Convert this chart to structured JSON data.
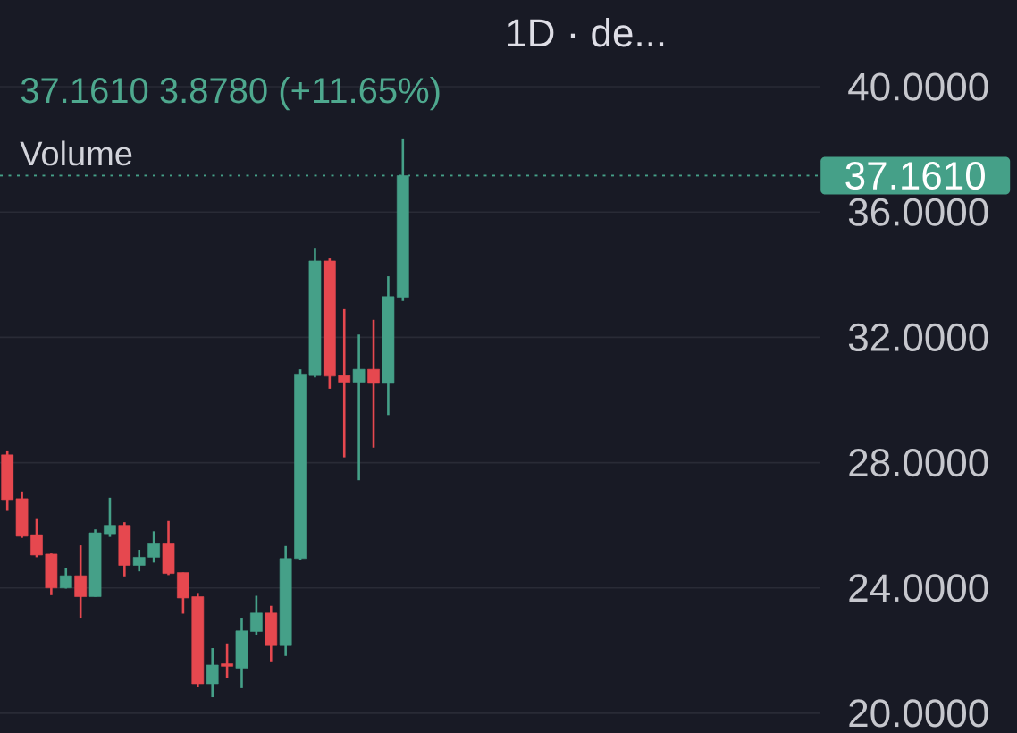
{
  "chart_data": {
    "type": "candlestick",
    "title": "1D · de...",
    "subtitle": "37.1610 3.8780 (+11.65%)",
    "annotations": [
      "Volume"
    ],
    "categories": [
      null,
      null,
      null,
      null,
      null,
      null,
      null,
      null,
      null,
      null,
      null,
      null,
      null,
      null,
      null,
      null,
      null,
      null,
      null,
      null,
      null,
      null,
      null,
      null,
      null,
      null,
      null,
      null,
      null,
      null,
      null,
      null,
      null,
      null,
      null,
      null,
      null,
      null,
      null,
      null,
      null,
      null,
      null,
      null,
      null,
      null,
      null,
      null,
      null,
      null,
      null,
      null,
      null,
      null,
      null,
      null
    ],
    "ohlc": [
      [
        28.25,
        28.39,
        26.46,
        26.82
      ],
      [
        26.85,
        27.08,
        25.6,
        25.65
      ],
      [
        25.7,
        26.2,
        24.98,
        25.05
      ],
      [
        25.08,
        25.1,
        23.77,
        24.0
      ],
      [
        24.0,
        24.65,
        23.98,
        24.39
      ],
      [
        24.39,
        25.36,
        23.05,
        23.72
      ],
      [
        23.72,
        25.87,
        23.72,
        25.76
      ],
      [
        25.73,
        26.88,
        25.63,
        26.0
      ],
      [
        26.0,
        26.1,
        24.37,
        24.72
      ],
      [
        24.72,
        25.22,
        24.53,
        24.98
      ],
      [
        24.98,
        25.81,
        24.81,
        25.41
      ],
      [
        25.41,
        26.14,
        24.41,
        24.46
      ],
      [
        24.49,
        24.49,
        23.18,
        23.68
      ],
      [
        23.72,
        23.84,
        20.85,
        20.94
      ],
      [
        20.94,
        22.08,
        20.51,
        21.54
      ],
      [
        21.58,
        22.23,
        21.11,
        21.5
      ],
      [
        21.44,
        23.05,
        20.8,
        22.63
      ],
      [
        22.61,
        23.75,
        22.51,
        23.2
      ],
      [
        23.2,
        23.43,
        21.63,
        22.16
      ],
      [
        22.16,
        25.34,
        21.83,
        24.94
      ],
      [
        24.94,
        30.98,
        24.9,
        30.83
      ],
      [
        30.78,
        34.86,
        30.72,
        34.44
      ],
      [
        34.44,
        34.52,
        30.36,
        30.76
      ],
      [
        30.78,
        32.9,
        28.17,
        30.57
      ],
      [
        30.57,
        32.09,
        27.44,
        30.98
      ],
      [
        30.98,
        32.56,
        28.48,
        30.53
      ],
      [
        30.53,
        33.95,
        29.52,
        33.3
      ],
      [
        33.28,
        38.35,
        33.16,
        37.161
      ],
      null,
      null,
      null,
      null,
      null,
      null,
      null,
      null,
      null,
      null,
      null,
      null,
      null,
      null,
      null,
      null,
      null,
      null,
      null,
      null,
      null,
      null,
      null,
      null,
      null,
      null,
      null,
      null
    ],
    "colors": [
      "#e6484f",
      "#e6484f",
      "#e6484f",
      "#e6484f",
      "#45a088",
      "#e6484f",
      "#45a088",
      "#45a088",
      "#e6484f",
      "#45a088",
      "#45a088",
      "#e6484f",
      "#e6484f",
      "#e6484f",
      "#45a088",
      "#e6484f",
      "#45a088",
      "#45a088",
      "#e6484f",
      "#45a088",
      "#45a088",
      "#45a088",
      "#e6484f",
      "#e6484f",
      "#45a088",
      "#e6484f",
      "#45a088",
      "#45a088",
      null,
      null,
      null,
      null,
      null,
      null,
      null,
      null,
      null,
      null,
      null,
      null,
      null,
      null,
      null,
      null,
      null,
      null,
      null,
      null,
      null,
      null,
      null,
      null,
      null,
      null,
      null,
      null
    ],
    "ylim": [
      19.37,
      42.77
    ],
    "yticks": [
      {
        "value": 20,
        "label": "20.0000"
      },
      {
        "value": 24,
        "label": "24.0000"
      },
      {
        "value": 28,
        "label": "28.0000"
      },
      {
        "value": 32,
        "label": "32.0000"
      },
      {
        "value": 36,
        "label": "36.0000"
      },
      {
        "value": 40,
        "label": "40.0000"
      }
    ],
    "grid": "y",
    "tick_labels": "y",
    "ref_lines": [
      {
        "axis": "y",
        "value": 37.161,
        "label": "37.1610",
        "color": "#45a088",
        "line_style": "dotted"
      }
    ]
  }
}
